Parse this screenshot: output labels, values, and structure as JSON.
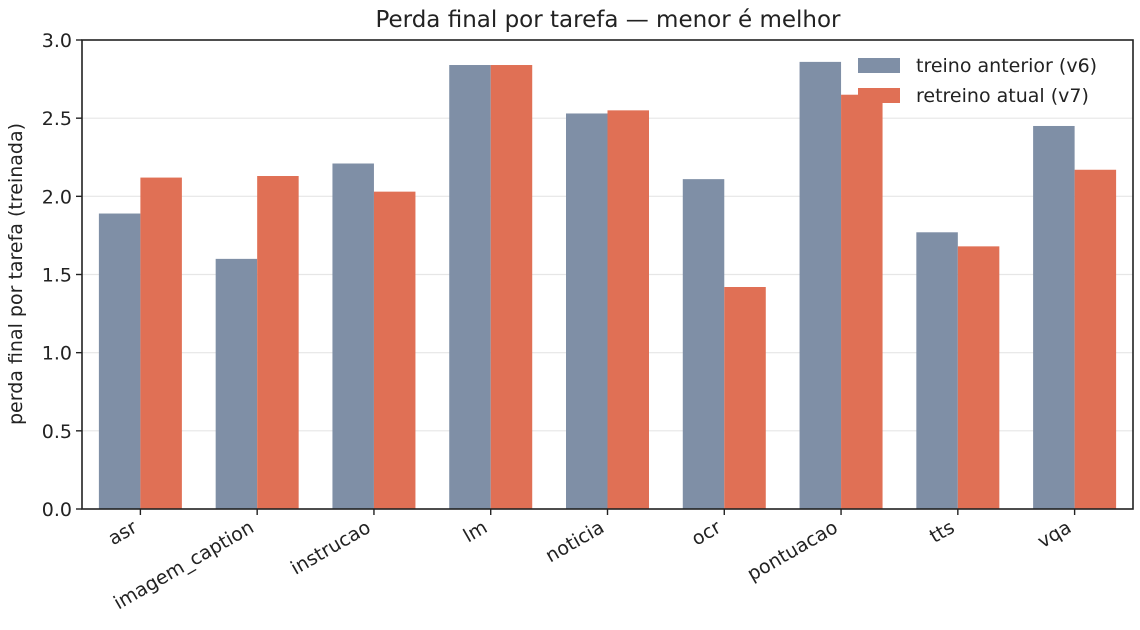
{
  "chart_data": {
    "type": "bar",
    "title": "Perda final por tarefa — menor é melhor",
    "xlabel": "",
    "ylabel": "perda final por tarefa (treinada)",
    "categories": [
      "asr",
      "imagem_caption",
      "instrucao",
      "lm",
      "noticia",
      "ocr",
      "pontuacao",
      "tts",
      "vqa"
    ],
    "series": [
      {
        "name": "treino anterior (v6)",
        "color": "#7f8fa6",
        "values": [
          1.89,
          1.6,
          2.21,
          2.84,
          2.53,
          2.11,
          2.86,
          1.77,
          2.45
        ]
      },
      {
        "name": "retreino atual (v7)",
        "color": "#e07055",
        "values": [
          2.12,
          2.13,
          2.03,
          2.84,
          2.55,
          1.42,
          2.65,
          1.68,
          2.17
        ]
      }
    ],
    "ylim": [
      0,
      3.0
    ],
    "yticks": [
      "0.0",
      "0.5",
      "1.0",
      "1.5",
      "2.0",
      "2.5",
      "3.0"
    ],
    "grid": "horizontal",
    "legend_position": "top-right"
  }
}
